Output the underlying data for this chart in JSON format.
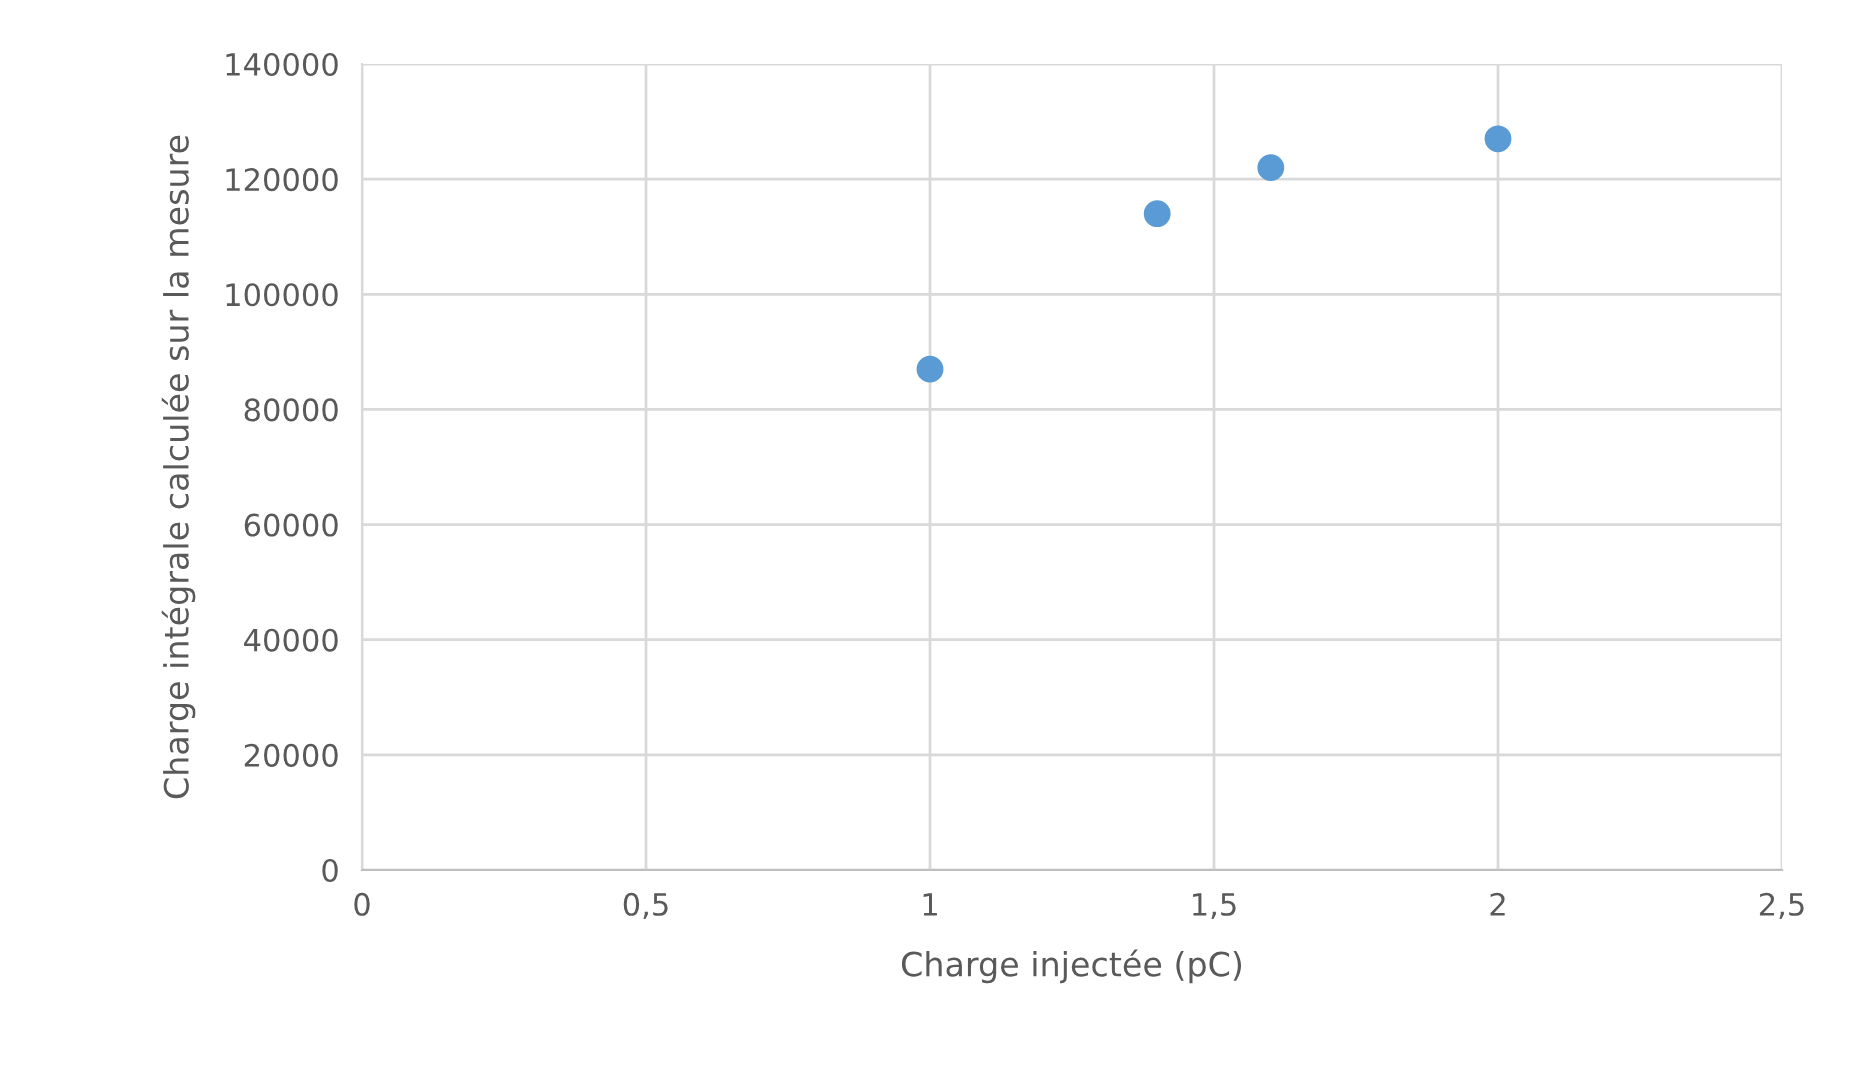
{
  "chart_data": {
    "type": "scatter",
    "xlabel": "Charge injectée (pC)",
    "ylabel": "Charge intégrale calculée sur la mesure",
    "series": [
      {
        "color": "#5b9bd5",
        "x": [
          1,
          1.4,
          1.6,
          2
        ],
        "values": [
          87000,
          114000,
          122000,
          127000
        ]
      }
    ],
    "xlim": [
      0,
      2.5
    ],
    "xticks": [
      0,
      {
        "value": 0.5,
        "label": "0,5"
      },
      1,
      {
        "value": 1.5,
        "label": "1,5"
      },
      2,
      {
        "value": 2.5,
        "label": "2,5"
      }
    ],
    "ylim": [
      0,
      140000
    ],
    "yticks": [
      0,
      20000,
      40000,
      60000,
      80000,
      100000,
      120000,
      140000
    ],
    "grid": true,
    "marker": "circle",
    "legend": false
  }
}
